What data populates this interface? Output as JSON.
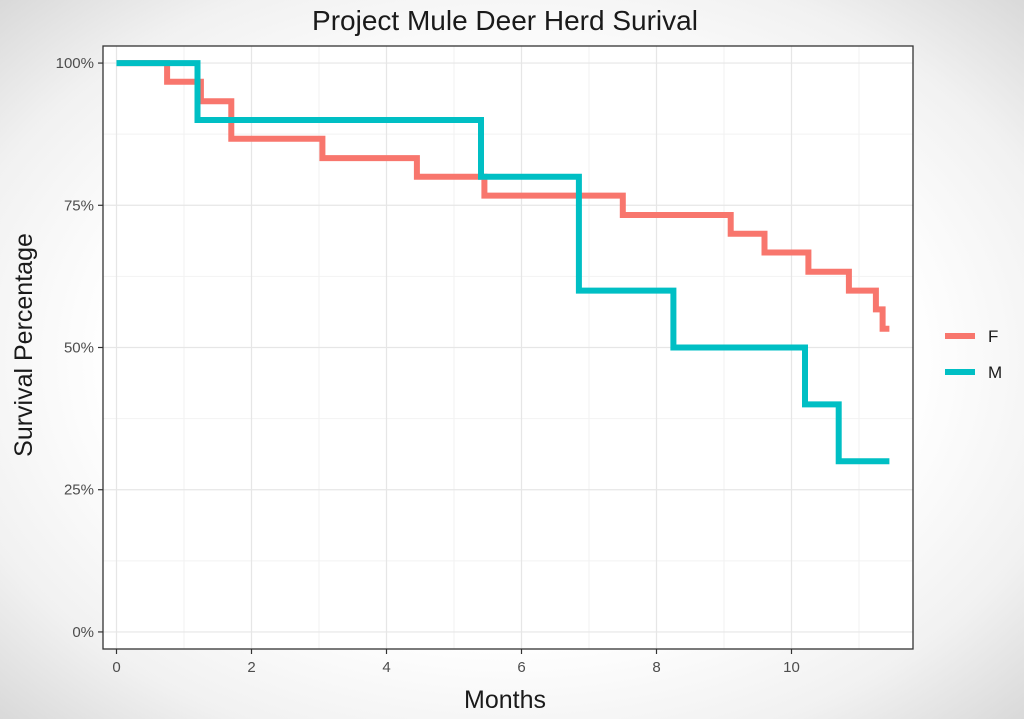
{
  "chart_data": {
    "type": "line",
    "step": true,
    "title": "Project Mule Deer Herd Surival",
    "xlabel": "Months",
    "ylabel": "Survival Percentage",
    "xlim": [
      -0.2,
      11.8
    ],
    "ylim": [
      -0.03,
      1.03
    ],
    "x_ticks": [
      0,
      2,
      4,
      6,
      8,
      10
    ],
    "x_tick_labels": [
      "0",
      "2",
      "4",
      "6",
      "8",
      "10"
    ],
    "y_ticks": [
      0,
      0.25,
      0.5,
      0.75,
      1.0
    ],
    "y_tick_labels": [
      "0%",
      "25%",
      "50%",
      "75%",
      "100%"
    ],
    "grid": true,
    "legend_position": "right",
    "series": [
      {
        "name": "F",
        "color": "#F8766D",
        "x": [
          0,
          0.75,
          1.25,
          1.7,
          3.05,
          4.45,
          5.45,
          7.5,
          9.1,
          9.6,
          10.25,
          10.85,
          11.25,
          11.35,
          11.45
        ],
        "y": [
          1.0,
          0.967,
          0.933,
          0.867,
          0.833,
          0.8,
          0.767,
          0.733,
          0.7,
          0.667,
          0.633,
          0.6,
          0.567,
          0.533,
          0.533
        ]
      },
      {
        "name": "M",
        "color": "#00BFC4",
        "x": [
          0,
          1.2,
          5.4,
          6.85,
          8.25,
          10.2,
          10.7,
          11.45
        ],
        "y": [
          1.0,
          0.9,
          0.8,
          0.6,
          0.5,
          0.4,
          0.3,
          0.3
        ]
      }
    ]
  }
}
